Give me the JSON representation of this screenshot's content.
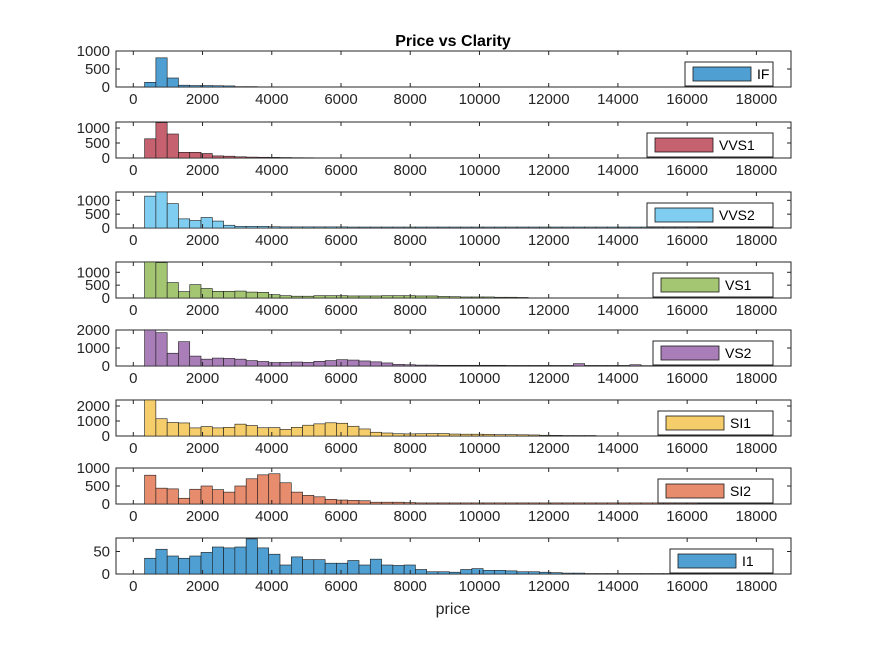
{
  "chart_data": {
    "type": "histogram",
    "title": "Price vs Clarity",
    "xlabel": "price",
    "xlim": [
      -500,
      19000
    ],
    "xticks": [
      0,
      2000,
      4000,
      6000,
      8000,
      10000,
      12000,
      14000,
      16000,
      18000
    ],
    "bin_start": 326,
    "bin_width": 326,
    "panels": [
      {
        "name": "IF",
        "color": "#4f9fd2",
        "ylim": [
          0,
          1000
        ],
        "yticks": [
          0,
          500,
          1000
        ],
        "counts": [
          130,
          810,
          250,
          50,
          40,
          40,
          35,
          30,
          10,
          10
        ]
      },
      {
        "name": "VVS1",
        "color": "#c6626f",
        "ylim": [
          0,
          1200
        ],
        "yticks": [
          0,
          500,
          1000
        ],
        "counts": [
          640,
          1180,
          800,
          190,
          190,
          150,
          70,
          60,
          40,
          30,
          25,
          20,
          15,
          10,
          8
        ]
      },
      {
        "name": "VVS2",
        "color": "#7fcdf0",
        "ylim": [
          0,
          1300
        ],
        "yticks": [
          0,
          500,
          1000
        ],
        "counts": [
          1150,
          1300,
          880,
          330,
          270,
          380,
          250,
          100,
          60,
          60,
          60,
          45,
          40,
          40,
          40,
          40,
          40,
          40,
          35,
          35,
          35,
          35,
          35,
          35,
          35,
          35,
          35,
          35,
          35,
          35,
          35,
          35,
          35,
          35,
          35,
          35,
          35,
          35,
          35,
          35,
          35,
          35,
          35,
          35,
          35,
          35,
          35,
          35,
          35
        ]
      },
      {
        "name": "VS1",
        "color": "#a4c673",
        "ylim": [
          0,
          1400
        ],
        "yticks": [
          0,
          500,
          1000
        ],
        "counts": [
          1400,
          1380,
          600,
          250,
          520,
          370,
          260,
          260,
          270,
          230,
          220,
          130,
          90,
          70,
          70,
          90,
          90,
          90,
          80,
          80,
          80,
          90,
          90,
          90,
          80,
          80,
          60,
          50,
          40,
          40,
          40,
          30,
          30,
          20
        ]
      },
      {
        "name": "VS2",
        "color": "#a97db8",
        "ylim": [
          0,
          2000
        ],
        "yticks": [
          0,
          1000,
          2000
        ],
        "counts": [
          2000,
          1850,
          710,
          1350,
          550,
          380,
          440,
          420,
          380,
          300,
          250,
          190,
          200,
          220,
          200,
          260,
          300,
          350,
          330,
          280,
          230,
          170,
          90,
          70,
          50,
          50,
          40,
          40,
          40,
          40,
          40,
          40,
          30,
          30,
          30,
          30,
          30,
          30,
          130,
          30,
          30,
          30,
          30,
          70,
          20
        ]
      },
      {
        "name": "SI1",
        "color": "#f5cd6a",
        "ylim": [
          0,
          2400
        ],
        "yticks": [
          0,
          1000,
          2000
        ],
        "counts": [
          2400,
          1150,
          900,
          870,
          540,
          630,
          540,
          580,
          790,
          700,
          550,
          560,
          440,
          580,
          720,
          810,
          880,
          850,
          650,
          470,
          250,
          200,
          150,
          140,
          150,
          160,
          160,
          130,
          120,
          120,
          110,
          90,
          90,
          80,
          70,
          50,
          40,
          30,
          30,
          30
        ]
      },
      {
        "name": "SI2",
        "color": "#e88c6e",
        "ylim": [
          0,
          1000
        ],
        "yticks": [
          0,
          500,
          1000
        ],
        "counts": [
          800,
          440,
          420,
          160,
          410,
          500,
          400,
          330,
          500,
          700,
          810,
          840,
          590,
          330,
          240,
          200,
          130,
          110,
          100,
          90,
          50,
          50,
          50,
          40,
          30,
          30,
          30,
          30,
          30,
          30,
          30,
          30,
          30,
          30,
          30,
          30,
          30,
          30,
          30,
          30,
          30,
          30,
          30,
          30,
          30,
          30,
          30,
          30,
          30
        ]
      },
      {
        "name": "I1",
        "color": "#4f9fd2",
        "ylim": [
          0,
          80
        ],
        "yticks": [
          0,
          50
        ],
        "counts": [
          35,
          55,
          40,
          35,
          40,
          48,
          60,
          58,
          60,
          78,
          58,
          44,
          20,
          38,
          32,
          32,
          24,
          24,
          30,
          20,
          33,
          20,
          19,
          20,
          10,
          5,
          5,
          4,
          10,
          12,
          8,
          8,
          7,
          5,
          5,
          4,
          3,
          2,
          2,
          1,
          1,
          1,
          1,
          1,
          1,
          1,
          1,
          1,
          1,
          1
        ]
      }
    ]
  }
}
